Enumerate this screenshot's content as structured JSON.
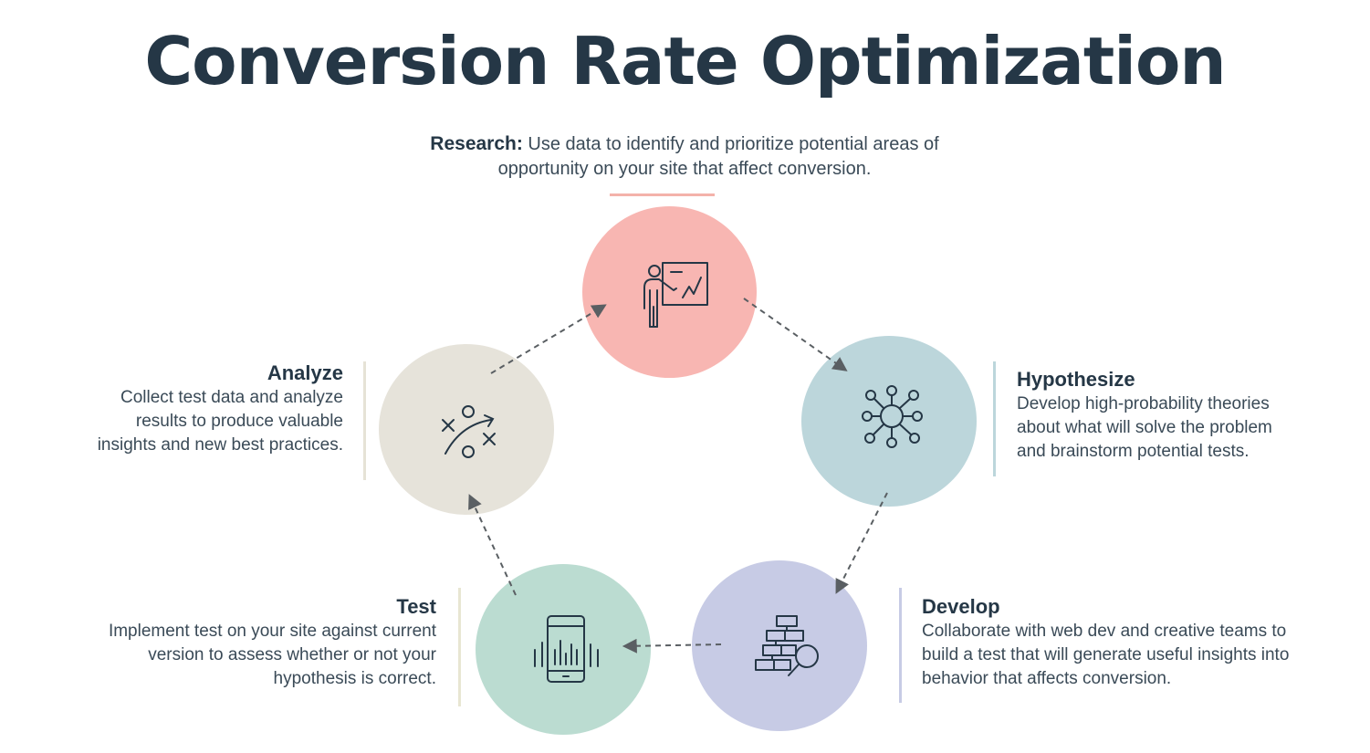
{
  "title": "Conversion Rate Optimization",
  "steps": {
    "research": {
      "label": "Research:",
      "description_line1": "Use data to identify and prioritize potential areas of",
      "description_line2": "opportunity on your site that affect conversion.",
      "icon": "presentation-icon",
      "color": "#f8b6b2"
    },
    "hypothesize": {
      "label": "Hypothesize",
      "description_lines": [
        "Develop high-probability theories",
        "about what will solve the problem",
        "and brainstorm potential tests."
      ],
      "icon": "network-nodes-icon",
      "color": "#bcd6db"
    },
    "develop": {
      "label": "Develop",
      "description_lines": [
        "Collaborate with web dev and creative teams to",
        "build a test that will generate useful insights into",
        "behavior that affects conversion."
      ],
      "icon": "flowchart-search-icon",
      "color": "#c7cbe5"
    },
    "test": {
      "label": "Test",
      "description_lines": [
        "Implement test on your site against current",
        "version to assess whether or not your",
        "hypothesis is correct."
      ],
      "icon": "mobile-analytics-icon",
      "color": "#bbdcd1"
    },
    "analyze": {
      "label": "Analyze",
      "description_lines": [
        "Collect test data and analyze",
        "results to produce valuable",
        "insights and new best practices."
      ],
      "icon": "strategy-play-icon",
      "color": "#e6e3da"
    }
  },
  "colors": {
    "title": "#253746",
    "arrow": "#5a5f63",
    "accent_research": "#f4b2aa",
    "accent_hypothesize": "#bcd6db",
    "accent_develop": "#c7cbe5",
    "accent_test": "#e8e6d2",
    "accent_analyze": "#e6e3d6"
  }
}
